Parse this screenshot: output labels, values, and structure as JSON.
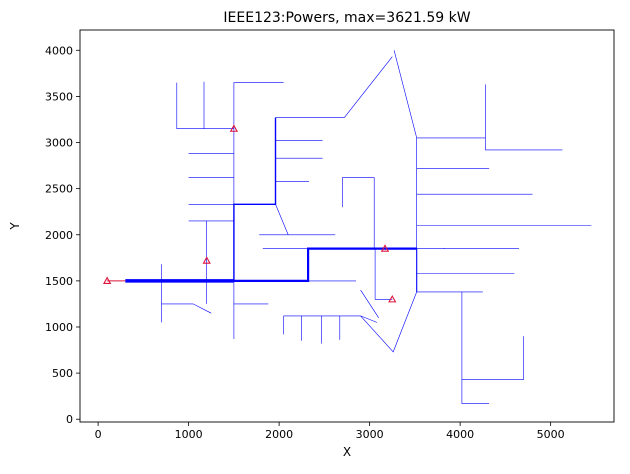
{
  "chart_data": {
    "type": "line",
    "title": "IEEE123:Powers, max=3621.59 kW",
    "xlabel": "X",
    "ylabel": "Y",
    "xlim": [
      -200,
      5700
    ],
    "ylim": [
      -30,
      4220
    ],
    "xticks": [
      0,
      1000,
      2000,
      3000,
      4000,
      5000
    ],
    "yticks": [
      0,
      500,
      1000,
      1500,
      2000,
      2500,
      3000,
      3500,
      4000
    ],
    "grid": false,
    "colors": {
      "line": "#0000ff",
      "marker": "#dc143c"
    },
    "heavy_segments": [
      {
        "points": [
          [
            300,
            1500
          ],
          [
            1500,
            1500
          ]
        ],
        "weight": 3.5
      },
      {
        "points": [
          [
            1500,
            1500
          ],
          [
            2320,
            1500
          ],
          [
            2320,
            1850
          ],
          [
            3520,
            1850
          ]
        ],
        "weight": 2.2
      },
      {
        "points": [
          [
            1500,
            1500
          ],
          [
            1500,
            2330
          ],
          [
            1960,
            2330
          ],
          [
            1960,
            3270
          ]
        ],
        "weight": 1.4
      },
      {
        "points": [
          [
            3520,
            1850
          ],
          [
            3520,
            1380
          ]
        ],
        "weight": 1.1
      },
      {
        "points": [
          [
            100,
            1500
          ],
          [
            300,
            1500
          ]
        ],
        "weight": 1.0
      }
    ],
    "thin_segments": [
      [
        [
          870,
          3650
        ],
        [
          870,
          3150
        ],
        [
          1500,
          3150
        ]
      ],
      [
        [
          1170,
          3660
        ],
        [
          1170,
          3150
        ]
      ],
      [
        [
          1500,
          1500
        ],
        [
          1500,
          3650
        ],
        [
          2050,
          3650
        ]
      ],
      [
        [
          1500,
          2330
        ],
        [
          1500,
          870
        ]
      ],
      [
        [
          1500,
          1250
        ],
        [
          1880,
          1250
        ]
      ],
      [
        [
          1500,
          1500
        ],
        [
          1500,
          1490
        ]
      ],
      [
        [
          1000,
          2880
        ],
        [
          1500,
          2880
        ]
      ],
      [
        [
          1000,
          2620
        ],
        [
          1500,
          2620
        ]
      ],
      [
        [
          1000,
          2330
        ],
        [
          1500,
          2330
        ]
      ],
      [
        [
          1000,
          2150
        ],
        [
          1500,
          2150
        ]
      ],
      [
        [
          1200,
          2150
        ],
        [
          1200,
          1500
        ]
      ],
      [
        [
          700,
          1680
        ],
        [
          700,
          1050
        ]
      ],
      [
        [
          700,
          1250
        ],
        [
          1050,
          1250
        ],
        [
          1250,
          1150
        ]
      ],
      [
        [
          1200,
          1500
        ],
        [
          1200,
          1250
        ]
      ],
      [
        [
          1960,
          3270
        ],
        [
          2720,
          3270
        ],
        [
          3250,
          3930
        ]
      ],
      [
        [
          1960,
          3020
        ],
        [
          2480,
          3020
        ]
      ],
      [
        [
          1960,
          2830
        ],
        [
          2480,
          2830
        ]
      ],
      [
        [
          1960,
          2580
        ],
        [
          2330,
          2580
        ]
      ],
      [
        [
          1960,
          2330
        ],
        [
          2100,
          2000
        ]
      ],
      [
        [
          1780,
          2000
        ],
        [
          2620,
          2000
        ]
      ],
      [
        [
          2700,
          2300
        ],
        [
          2700,
          2620
        ],
        [
          3050,
          2620
        ],
        [
          3050,
          1850
        ]
      ],
      [
        [
          1820,
          1850
        ],
        [
          2320,
          1850
        ]
      ],
      [
        [
          2320,
          1500
        ],
        [
          2320,
          1850
        ]
      ],
      [
        [
          2320,
          1500
        ],
        [
          2850,
          1500
        ]
      ],
      [
        [
          2050,
          1120
        ],
        [
          2050,
          920
        ]
      ],
      [
        [
          2050,
          1120
        ],
        [
          2900,
          1120
        ],
        [
          3080,
          1050
        ]
      ],
      [
        [
          2250,
          1120
        ],
        [
          2250,
          850
        ]
      ],
      [
        [
          2470,
          1120
        ],
        [
          2470,
          820
        ]
      ],
      [
        [
          2670,
          1120
        ],
        [
          2670,
          860
        ]
      ],
      [
        [
          2900,
          1120
        ],
        [
          3260,
          730
        ],
        [
          3520,
          1380
        ]
      ],
      [
        [
          2900,
          1400
        ],
        [
          3100,
          1100
        ]
      ],
      [
        [
          3060,
          1850
        ],
        [
          3060,
          1300
        ],
        [
          3250,
          1300
        ]
      ],
      [
        [
          3520,
          1850
        ],
        [
          3830,
          1850
        ]
      ],
      [
        [
          3520,
          1850
        ],
        [
          3520,
          3050
        ],
        [
          3270,
          4000
        ]
      ],
      [
        [
          3520,
          3050
        ],
        [
          4280,
          3050
        ]
      ],
      [
        [
          4280,
          3630
        ],
        [
          4280,
          2920
        ],
        [
          5130,
          2920
        ]
      ],
      [
        [
          3520,
          2720
        ],
        [
          4320,
          2720
        ]
      ],
      [
        [
          3520,
          2440
        ],
        [
          4800,
          2440
        ]
      ],
      [
        [
          3520,
          2100
        ],
        [
          5450,
          2100
        ]
      ],
      [
        [
          3820,
          1850
        ],
        [
          4650,
          1850
        ]
      ],
      [
        [
          3520,
          1580
        ],
        [
          4600,
          1580
        ]
      ],
      [
        [
          3520,
          1380
        ],
        [
          4250,
          1380
        ]
      ],
      [
        [
          4020,
          1380
        ],
        [
          4020,
          170
        ],
        [
          4320,
          170
        ]
      ],
      [
        [
          4020,
          430
        ],
        [
          4700,
          430
        ],
        [
          4700,
          900
        ]
      ]
    ],
    "markers": [
      [
        100,
        1500
      ],
      [
        1200,
        1720
      ],
      [
        1500,
        3150
      ],
      [
        3170,
        1850
      ],
      [
        3250,
        1300
      ]
    ]
  }
}
